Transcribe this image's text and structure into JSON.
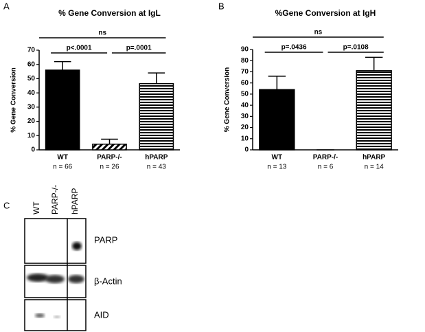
{
  "chart_data": [
    {
      "type": "bar",
      "panel": "A",
      "title": "% Gene Conversion at IgL",
      "ylabel": "% Gene Conversion",
      "categories": [
        "WT",
        "PARP-/-",
        "hPARP"
      ],
      "counts": [
        "n = 66",
        "n = 26",
        "n = 43"
      ],
      "values": [
        56,
        4,
        46.5
      ],
      "errors": [
        6,
        3.5,
        7.5
      ],
      "patterns": [
        "solid",
        "diagonal",
        "horizontal"
      ],
      "color": "#000000",
      "ylim": [
        0,
        70
      ],
      "yticks": [
        0,
        10,
        20,
        30,
        40,
        50,
        60,
        70
      ],
      "annotations": [
        "p<.0001",
        "p=.0001",
        "ns"
      ]
    },
    {
      "type": "bar",
      "panel": "B",
      "title": "%Gene Conversion at IgH",
      "ylabel": "% Gene Conversion",
      "categories": [
        "WT",
        "PARP-/-",
        "hPARP"
      ],
      "counts": [
        "n = 13",
        "n = 6",
        "n = 14"
      ],
      "values": [
        54,
        0,
        71
      ],
      "errors": [
        12,
        0,
        12
      ],
      "patterns": [
        "solid",
        "diagonal",
        "horizontal"
      ],
      "color": "#000000",
      "ylim": [
        0,
        90
      ],
      "yticks": [
        0,
        10,
        20,
        30,
        40,
        50,
        60,
        70,
        80,
        90
      ],
      "annotations": [
        "p=.0436",
        "p=.0108",
        "ns"
      ]
    }
  ],
  "blot": {
    "panel": "C",
    "lanes": [
      "WT",
      "PARP-/-",
      "hPARP"
    ],
    "rows": [
      "PARP",
      "β-Actin",
      "AID"
    ]
  }
}
